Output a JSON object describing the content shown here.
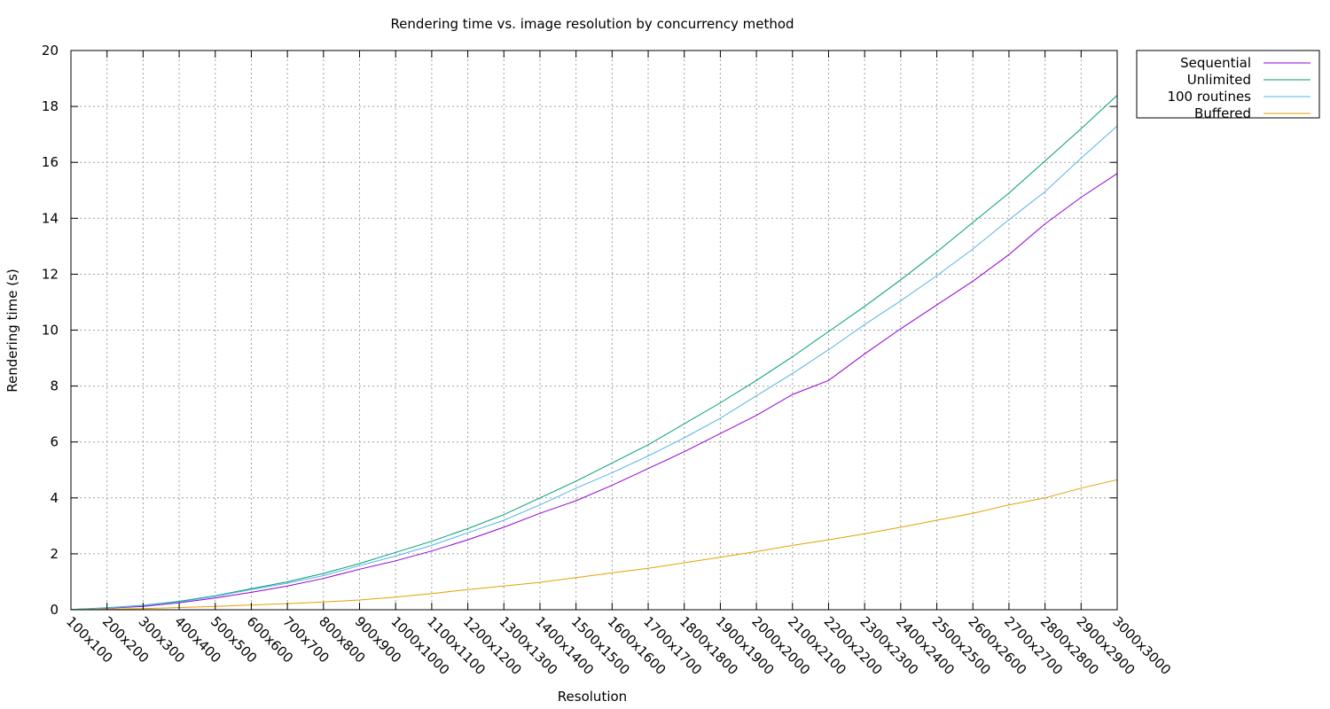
{
  "chart_data": {
    "type": "line",
    "title": "Rendering time vs. image resolution by concurrency method",
    "xlabel": "Resolution",
    "ylabel": "Rendering time (s)",
    "ylim": [
      0,
      20
    ],
    "yticks": [
      0,
      2,
      4,
      6,
      8,
      10,
      12,
      14,
      16,
      18,
      20
    ],
    "grid": true,
    "legend_position": "outside-top-right",
    "categories": [
      "100x100",
      "200x200",
      "300x300",
      "400x400",
      "500x500",
      "600x600",
      "700x700",
      "800x800",
      "900x900",
      "1000x1000",
      "1100x1100",
      "1200x1200",
      "1300x1300",
      "1400x1400",
      "1500x1500",
      "1600x1600",
      "1700x1700",
      "1800x1800",
      "1900x1900",
      "2000x2000",
      "2100x2100",
      "2200x2200",
      "2300x2300",
      "2400x2400",
      "2500x2500",
      "2600x2600",
      "2700x2700",
      "2800x2800",
      "2900x2900",
      "3000x3000"
    ],
    "series": [
      {
        "name": "Sequential",
        "color": "#9400d3",
        "values": [
          0.01,
          0.05,
          0.12,
          0.25,
          0.42,
          0.62,
          0.85,
          1.12,
          1.45,
          1.75,
          2.1,
          2.5,
          2.95,
          3.45,
          3.9,
          4.45,
          5.05,
          5.65,
          6.3,
          6.95,
          7.7,
          8.2,
          9.15,
          10.05,
          10.9,
          11.75,
          12.7,
          13.8,
          14.75,
          15.6
        ]
      },
      {
        "name": "Unlimited",
        "color": "#009e73",
        "values": [
          0.01,
          0.07,
          0.16,
          0.3,
          0.5,
          0.75,
          1.0,
          1.3,
          1.65,
          2.05,
          2.45,
          2.9,
          3.4,
          4.0,
          4.6,
          5.25,
          5.9,
          6.65,
          7.4,
          8.2,
          9.05,
          9.95,
          10.85,
          11.8,
          12.8,
          13.85,
          14.9,
          16.05,
          17.2,
          18.4
        ]
      },
      {
        "name": "100 routines",
        "color": "#56b4e9",
        "values": [
          0.01,
          0.06,
          0.15,
          0.28,
          0.48,
          0.72,
          0.95,
          1.22,
          1.58,
          1.92,
          2.3,
          2.75,
          3.2,
          3.75,
          4.35,
          4.9,
          5.5,
          6.15,
          6.85,
          7.65,
          8.45,
          9.3,
          10.2,
          11.05,
          11.95,
          12.9,
          13.95,
          14.95,
          16.15,
          17.3
        ]
      },
      {
        "name": "Buffered",
        "color": "#e69f00",
        "values": [
          0.0,
          0.02,
          0.04,
          0.08,
          0.12,
          0.17,
          0.22,
          0.28,
          0.35,
          0.45,
          0.58,
          0.72,
          0.85,
          0.98,
          1.15,
          1.32,
          1.48,
          1.68,
          1.88,
          2.08,
          2.3,
          2.5,
          2.72,
          2.95,
          3.2,
          3.45,
          3.75,
          4.0,
          4.35,
          4.65
        ]
      }
    ]
  }
}
